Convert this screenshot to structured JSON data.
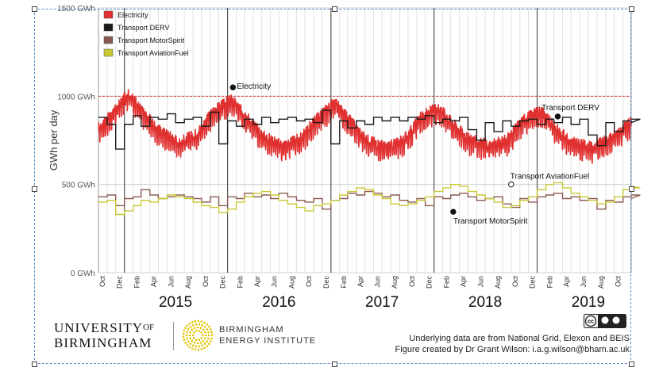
{
  "chart_data": {
    "type": "line",
    "ylabel": "GWh per day",
    "y_ticks": [
      "1500 GWh",
      "1000 GWh",
      "500 GWh",
      "0 GWh"
    ],
    "y_tick_values": [
      1500,
      1000,
      500,
      0
    ],
    "ylim": [
      0,
      1500
    ],
    "reference_line": 1000,
    "month_ticks": [
      "Oct",
      "Dec",
      "Feb",
      "Apr",
      "Jun",
      "Aug",
      "Oct",
      "Dec",
      "Feb",
      "Apr",
      "Jun",
      "Aug",
      "Oct",
      "Dec",
      "Feb",
      "Apr",
      "Jun",
      "Aug",
      "Oct",
      "Dec",
      "Feb",
      "Apr",
      "Jun",
      "Aug",
      "Oct",
      "Dec",
      "Feb",
      "Apr",
      "Jun",
      "Aug",
      "Oct"
    ],
    "year_labels": [
      "2015",
      "2016",
      "2017",
      "2018",
      "2019"
    ],
    "x_range": [
      "2014-10-01",
      "2019-11-30"
    ],
    "year_boundaries": [
      "2015-01-01",
      "2016-01-01",
      "2017-01-01",
      "2018-01-01",
      "2019-01-01"
    ],
    "grid": "vertical monthly lines",
    "legend": {
      "placement": "top-left",
      "entries": [
        {
          "name": "Electricity",
          "color": "#e03030"
        },
        {
          "name": "Transport DERV",
          "color": "#1a1a1a"
        },
        {
          "name": "Transport MotorSpirit",
          "color": "#8a5a50"
        },
        {
          "name": "Transport AviationFuel",
          "color": "#c8c834"
        }
      ]
    },
    "annotations": [
      {
        "text": "Electricity",
        "x": "2016-01-20",
        "y": 1050
      },
      {
        "text": "Transport DERV",
        "x": "2019-03-15",
        "y": 885
      },
      {
        "text": "Transport AviationFuel",
        "x": "2018-10-01",
        "y": 500
      },
      {
        "text": "Transport MotorSpirit",
        "x": "2018-03-10",
        "y": 345
      }
    ],
    "series": [
      {
        "name": "Electricity",
        "color": "#e03030",
        "kind": "daily",
        "x": [
          "2014-10-01",
          "2014-11-15",
          "2015-01-15",
          "2015-03-01",
          "2015-05-01",
          "2015-07-15",
          "2015-09-15",
          "2015-11-15",
          "2016-01-15",
          "2016-03-01",
          "2016-05-01",
          "2016-07-15",
          "2016-09-15",
          "2016-11-15",
          "2017-01-15",
          "2017-03-01",
          "2017-05-01",
          "2017-07-15",
          "2017-09-15",
          "2017-11-15",
          "2018-01-15",
          "2018-03-01",
          "2018-05-01",
          "2018-07-15",
          "2018-09-15",
          "2018-11-15",
          "2019-01-15",
          "2019-03-01",
          "2019-05-01",
          "2019-07-15",
          "2019-09-15",
          "2019-11-30"
        ],
        "values": [
          800,
          870,
          1000,
          900,
          790,
          720,
          770,
          900,
          960,
          880,
          760,
          700,
          740,
          860,
          940,
          860,
          740,
          690,
          730,
          860,
          920,
          840,
          740,
          700,
          730,
          850,
          900,
          810,
          720,
          690,
          740,
          830
        ],
        "noise": 75
      },
      {
        "name": "Transport DERV",
        "color": "#1a1a1a",
        "kind": "monthly-step",
        "start": "2014-10",
        "values": [
          880,
          840,
          700,
          840,
          890,
          830,
          880,
          870,
          900,
          850,
          870,
          880,
          830,
          910,
          730,
          860,
          830,
          870,
          840,
          880,
          850,
          870,
          880,
          860,
          870,
          850,
          920,
          730,
          860,
          820,
          860,
          840,
          880,
          860,
          880,
          860,
          880,
          870,
          890,
          850,
          870,
          860,
          880,
          810,
          750,
          850,
          800,
          860,
          830,
          860,
          870,
          840,
          870,
          850,
          880,
          840,
          870,
          780,
          720,
          850,
          800,
          860,
          850,
          870
        ]
      },
      {
        "name": "Transport MotorSpirit",
        "color": "#8a5a50",
        "kind": "monthly-step",
        "start": "2014-10",
        "values": [
          430,
          440,
          380,
          420,
          430,
          470,
          440,
          420,
          430,
          440,
          430,
          420,
          400,
          430,
          380,
          430,
          420,
          450,
          430,
          440,
          420,
          450,
          430,
          410,
          400,
          420,
          360,
          410,
          420,
          450,
          440,
          460,
          450,
          430,
          440,
          410,
          400,
          420,
          380,
          430,
          420,
          440,
          450,
          430,
          410,
          420,
          430,
          390,
          370,
          420,
          400,
          430,
          440,
          450,
          420,
          430,
          410,
          420,
          360,
          410,
          400,
          430,
          420,
          440
        ]
      },
      {
        "name": "Transport AviationFuel",
        "color": "#c8c834",
        "kind": "monthly-step",
        "start": "2014-10",
        "values": [
          400,
          410,
          330,
          350,
          380,
          410,
          400,
          420,
          440,
          430,
          420,
          400,
          380,
          370,
          340,
          360,
          400,
          430,
          450,
          460,
          440,
          410,
          390,
          370,
          350,
          380,
          390,
          410,
          440,
          460,
          480,
          470,
          440,
          420,
          390,
          380,
          390,
          410,
          430,
          460,
          480,
          500,
          490,
          460,
          440,
          420,
          400,
          370,
          380,
          410,
          430,
          470,
          500,
          510,
          480,
          450,
          430,
          410,
          390,
          400,
          430,
          470,
          490,
          480
        ]
      }
    ]
  },
  "footer": {
    "uob_line1": "UNIVERSITY",
    "uob_of": "OF",
    "uob_line2": "BIRMINGHAM",
    "bei_line1": "BIRMINGHAM",
    "bei_line2": "ENERGY INSTITUTE",
    "credit_line1": "Underlying data are from National Grid, Elexon and BEIS",
    "credit_line2": "Figure created by Dr Grant Wilson: i.a.g.wilson@bham.ac.uk",
    "license_icon": "creative-commons-by-sa-badge",
    "bei_icon": "sunburst-emblem"
  }
}
